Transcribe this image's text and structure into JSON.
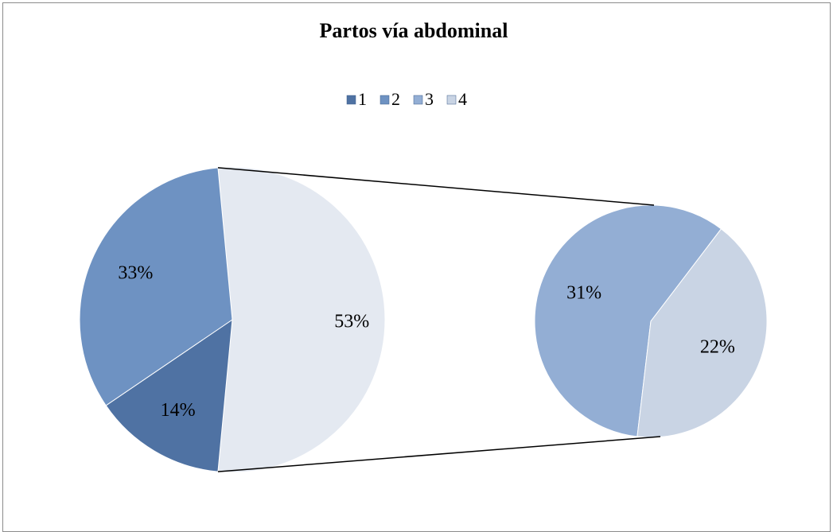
{
  "chart_data": {
    "type": "pie-of-pie",
    "title": "Partos vía abdominal",
    "categories": [
      "1",
      "2",
      "3",
      "4"
    ],
    "values": [
      14,
      33,
      31,
      22
    ],
    "value_labels": [
      "14%",
      "33%",
      "31%",
      "22%"
    ],
    "colors": [
      "#4f72a3",
      "#6e92c2",
      "#93aed4",
      "#c9d4e4"
    ],
    "other_value": 53,
    "other_label": "53%",
    "other_color": "#e4e9f1",
    "secondary_count": 2,
    "legend": "top"
  }
}
